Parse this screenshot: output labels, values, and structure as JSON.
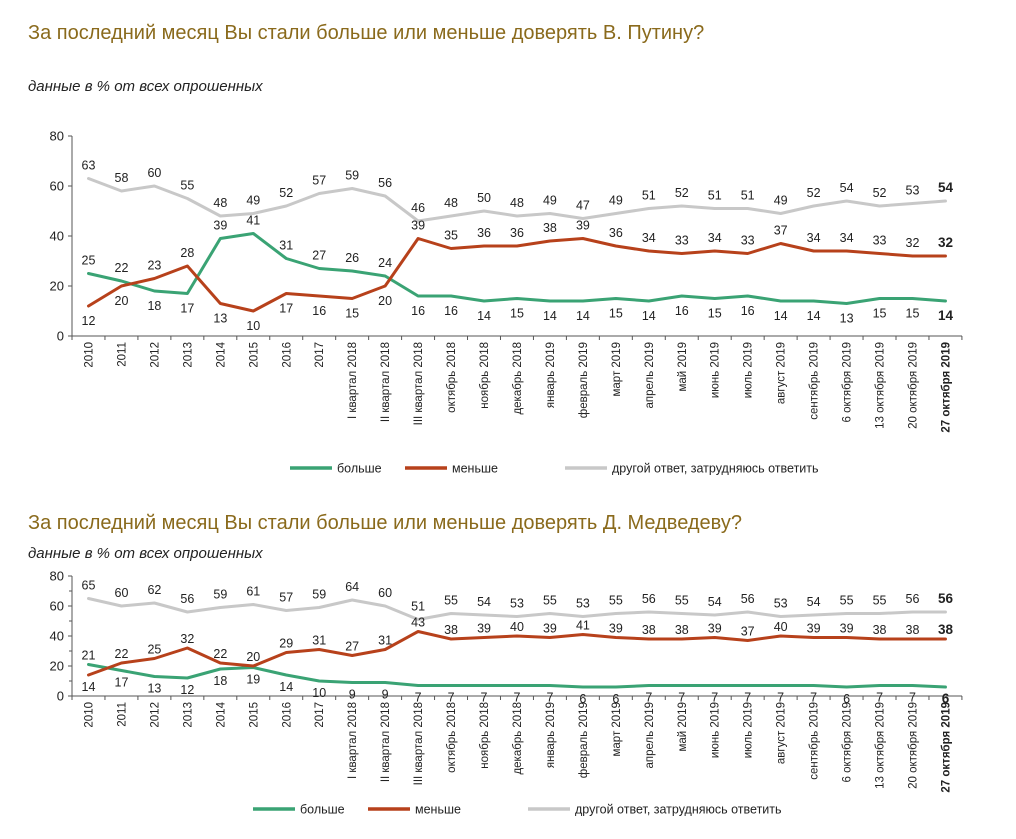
{
  "chart_data": [
    {
      "type": "line",
      "title": "За последний месяц Вы стали больше или меньше доверять В. Путину?",
      "subtitle": "данные в % от всех опрошенных",
      "ylim": [
        0,
        80
      ],
      "yticks": [
        "0",
        "20",
        "40",
        "60",
        "80"
      ],
      "categories": [
        "2010",
        "2011",
        "2012",
        "2013",
        "2014",
        "2015",
        "2016",
        "2017",
        "I квартал 2018",
        "II квартал 2018",
        "III квартал 2018",
        "октябрь 2018",
        "ноябрь 2018",
        "декабрь 2018",
        "январь 2019",
        "февраль 2019",
        "март 2019",
        "апрель 2019",
        "май 2019",
        "июнь 2019",
        "июль 2019",
        "август 2019",
        "сентябрь 2019",
        "6 октября 2019",
        "13 октября 2019",
        "20 октября 2019",
        "27 октября 2019"
      ],
      "series": [
        {
          "name": "больше",
          "color": "#3aa374",
          "values": [
            25,
            22,
            18,
            17,
            39,
            41,
            31,
            27,
            26,
            24,
            16,
            16,
            14,
            15,
            14,
            14,
            15,
            14,
            16,
            15,
            16,
            14,
            14,
            13,
            15,
            15,
            14
          ]
        },
        {
          "name": "меньше",
          "color": "#b7411b",
          "values": [
            12,
            20,
            23,
            28,
            13,
            10,
            17,
            16,
            15,
            20,
            39,
            35,
            36,
            36,
            38,
            39,
            36,
            34,
            33,
            34,
            33,
            37,
            34,
            34,
            33,
            32,
            32
          ]
        },
        {
          "name": "другой ответ, затрудняюсь ответить",
          "color": "#c8c8c8",
          "values": [
            63,
            58,
            60,
            55,
            48,
            49,
            52,
            57,
            59,
            56,
            46,
            48,
            50,
            48,
            49,
            47,
            49,
            51,
            52,
            51,
            51,
            49,
            52,
            54,
            52,
            53,
            54
          ]
        }
      ]
    },
    {
      "type": "line",
      "title": "За последний месяц Вы стали больше или меньше доверять Д. Медведеву?",
      "subtitle": "данные в % от всех опрошенных",
      "ylim": [
        0,
        80
      ],
      "yticks": [
        "0",
        "20",
        "40",
        "60",
        "80"
      ],
      "yticks_minor": [
        "10",
        "30",
        "50",
        "70"
      ],
      "categories": [
        "2010",
        "2011",
        "2012",
        "2013",
        "2014",
        "2015",
        "2016",
        "2017",
        "I квартал 2018",
        "II квартал 2018",
        "III квартал 2018",
        "октябрь 2018",
        "ноябрь 2018",
        "декабрь 2018",
        "январь 2019",
        "февраль 2019",
        "март 2019",
        "апрель 2019",
        "май 2019",
        "июнь 2019",
        "июль 2019",
        "август 2019",
        "сентябрь 2019",
        "6 октября 2019",
        "13 октября 2019",
        "20 октября 2019",
        "27 октября 2019"
      ],
      "series": [
        {
          "name": "больше",
          "color": "#3aa374",
          "values": [
            21,
            17,
            13,
            12,
            18,
            19,
            14,
            10,
            9,
            9,
            7,
            7,
            7,
            7,
            7,
            6,
            6,
            7,
            7,
            7,
            7,
            7,
            7,
            6,
            7,
            7,
            6
          ]
        },
        {
          "name": "меньше",
          "color": "#b7411b",
          "values": [
            14,
            22,
            25,
            32,
            22,
            20,
            29,
            31,
            27,
            31,
            43,
            38,
            39,
            40,
            39,
            41,
            39,
            38,
            38,
            39,
            37,
            40,
            39,
            39,
            38,
            38,
            38
          ]
        },
        {
          "name": "другой ответ, затрудняюсь ответить",
          "color": "#c8c8c8",
          "values": [
            65,
            60,
            62,
            56,
            59,
            61,
            57,
            59,
            64,
            60,
            51,
            55,
            54,
            53,
            55,
            53,
            55,
            56,
            55,
            54,
            56,
            53,
            54,
            55,
            55,
            56,
            56
          ]
        }
      ]
    }
  ]
}
